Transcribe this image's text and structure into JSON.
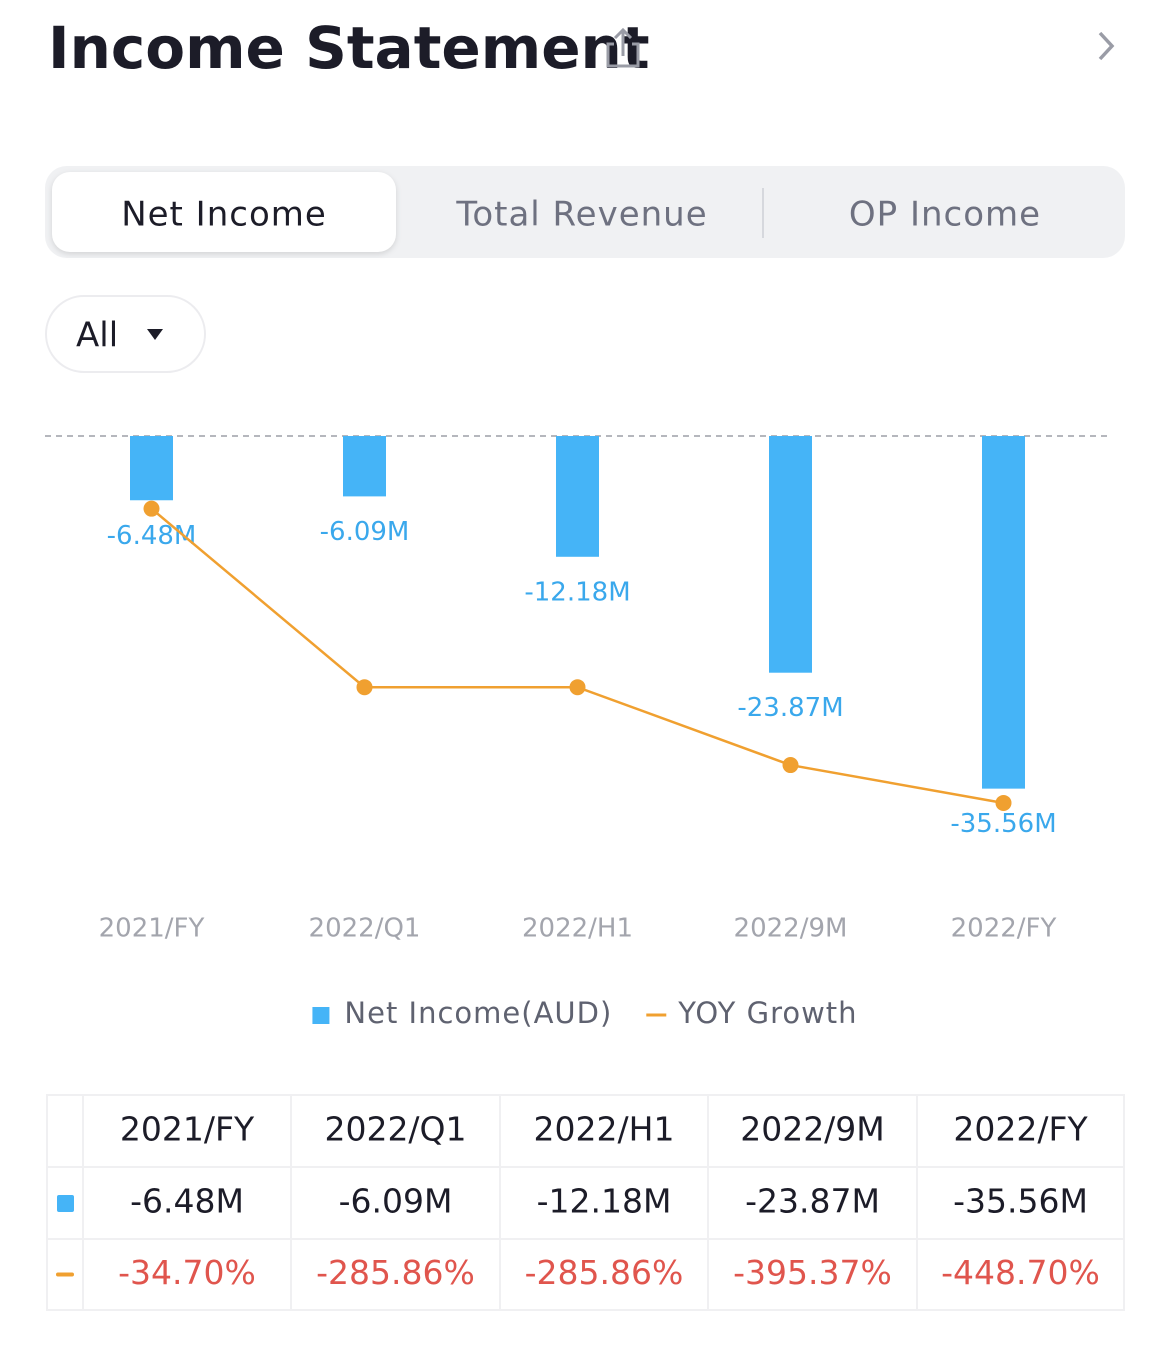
{
  "header": {
    "title": "Income Statement"
  },
  "tabs": [
    {
      "label": "Net Income",
      "active": true
    },
    {
      "label": "Total Revenue"
    },
    {
      "label": "OP Income"
    }
  ],
  "filter": {
    "label": "All"
  },
  "chart_data": {
    "type": "bar",
    "categories": [
      "2021/FY",
      "2022/Q1",
      "2022/H1",
      "2022/9M",
      "2022/FY"
    ],
    "series": [
      {
        "name": "Net Income(AUD)",
        "type": "bar",
        "color": "#45b4f7",
        "values": [
          -6.48,
          -6.09,
          -12.18,
          -23.87,
          -35.56
        ],
        "value_labels": [
          "-6.48M",
          "-6.09M",
          "-12.18M",
          "-23.87M",
          "-35.56M"
        ]
      },
      {
        "name": "YOY Growth",
        "type": "line",
        "axis": "y2",
        "color": "#f0a030",
        "values": [
          -34.7,
          -285.86,
          -285.86,
          -395.37,
          -448.7
        ],
        "value_labels": [
          "-34.70%",
          "-285.86%",
          "-285.86%",
          "-395.37%",
          "-448.70%"
        ]
      }
    ],
    "ylim": [
      -36,
      0
    ],
    "y2lim": [
      -460,
      0
    ],
    "legend": "bottom"
  }
}
